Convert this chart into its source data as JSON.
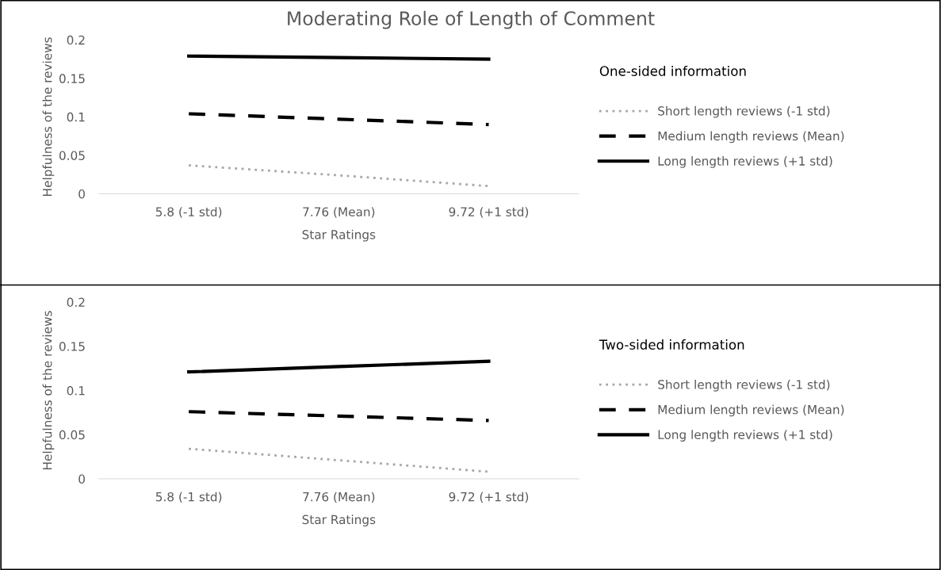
{
  "chart_data": [
    {
      "type": "line",
      "title": "Moderating Role of Length of Comment",
      "xlabel": "Star Ratings",
      "ylabel": "Helpfulness of the reviews",
      "legend_title": "One-sided information",
      "categories": [
        "5.8 (-1 std)",
        "7.76 (Mean)",
        "9.72 (+1 std)"
      ],
      "ylim": [
        0,
        0.2
      ],
      "yticks": [
        0,
        0.05,
        0.1,
        0.15,
        0.2
      ],
      "grid": false,
      "legend": "right",
      "marker": "none",
      "series": [
        {
          "name": "Short length reviews (-1 std)",
          "color": "#a6a6a6",
          "line_style": "dotted",
          "values": [
            0.037,
            0.024,
            0.01
          ]
        },
        {
          "name": "Medium length reviews (Mean)",
          "color": "#000000",
          "line_style": "dashed",
          "values": [
            0.104,
            0.097,
            0.09
          ]
        },
        {
          "name": "Long length reviews (+1 std)",
          "color": "#000000",
          "line_style": "solid",
          "values": [
            0.179,
            0.177,
            0.175
          ]
        }
      ]
    },
    {
      "type": "line",
      "xlabel": "Star Ratings",
      "ylabel": "Helpfulness of the reviews",
      "legend_title": "Two-sided information",
      "categories": [
        "5.8 (-1 std)",
        "7.76 (Mean)",
        "9.72 (+1 std)"
      ],
      "ylim": [
        0,
        0.2
      ],
      "yticks": [
        0,
        0.05,
        0.1,
        0.15,
        0.2
      ],
      "grid": false,
      "legend": "right",
      "marker": "none",
      "series": [
        {
          "name": "Short length reviews (-1 std)",
          "color": "#a6a6a6",
          "line_style": "dotted",
          "values": [
            0.034,
            0.021,
            0.008
          ]
        },
        {
          "name": "Medium length reviews (Mean)",
          "color": "#000000",
          "line_style": "dashed",
          "values": [
            0.076,
            0.071,
            0.066
          ]
        },
        {
          "name": "Long length reviews (+1 std)",
          "color": "#000000",
          "line_style": "solid",
          "values": [
            0.121,
            0.127,
            0.133
          ]
        }
      ]
    }
  ]
}
